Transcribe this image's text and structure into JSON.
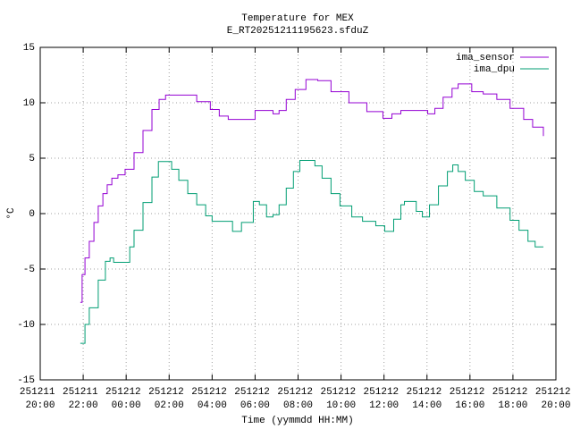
{
  "chart_data": {
    "type": "line",
    "step": true,
    "title": "Temperature for MEX",
    "subtitle": "E_RT20251211195623.sfduZ",
    "xlabel": "Time (yymmdd HH:MM)",
    "ylabel": "°C",
    "xlim": [
      "251211 20:00",
      "251212 20:00"
    ],
    "xticks": [
      "251211 20:00",
      "251211 22:00",
      "251212 00:00",
      "251212 02:00",
      "251212 04:00",
      "251212 06:00",
      "251212 08:00",
      "251212 10:00",
      "251212 12:00",
      "251212 14:00",
      "251212 16:00",
      "251212 18:00",
      "251212 20:00"
    ],
    "ylim": [
      -15,
      15
    ],
    "yticks": [
      -15,
      -10,
      -5,
      0,
      5,
      10,
      15
    ],
    "grid": true,
    "legend": "top right",
    "series": [
      {
        "name": "ima_sensor",
        "color": "#9400d3",
        "x": [
          "251211 21:52",
          "251211 21:57",
          "251211 22:05",
          "251211 22:17",
          "251211 22:30",
          "251211 22:42",
          "251211 22:55",
          "251211 23:07",
          "251211 23:20",
          "251211 23:37",
          "251211 23:57",
          "251212 00:22",
          "251212 00:47",
          "251212 01:12",
          "251212 01:32",
          "251212 01:50",
          "251212 02:47",
          "251212 03:17",
          "251212 03:55",
          "251212 04:20",
          "251212 04:45",
          "251212 05:27",
          "251212 06:00",
          "251212 06:32",
          "251212 06:50",
          "251212 07:07",
          "251212 07:27",
          "251212 07:52",
          "251212 08:22",
          "251212 08:55",
          "251212 09:32",
          "251212 10:22",
          "251212 11:12",
          "251212 11:57",
          "251212 12:22",
          "251212 12:47",
          "251212 13:42",
          "251212 14:02",
          "251212 14:22",
          "251212 14:45",
          "251212 15:10",
          "251212 15:27",
          "251212 15:47",
          "251212 16:05",
          "251212 16:37",
          "251212 17:15",
          "251212 17:52",
          "251212 18:30",
          "251212 18:55",
          "251212 19:25"
        ],
        "values": [
          -8.0,
          -5.5,
          -4.0,
          -2.5,
          -0.8,
          0.7,
          1.8,
          2.6,
          3.2,
          3.5,
          4.0,
          5.5,
          7.5,
          9.4,
          10.3,
          10.7,
          10.7,
          10.1,
          9.4,
          8.8,
          8.5,
          8.5,
          9.3,
          9.3,
          9.0,
          9.3,
          10.3,
          11.2,
          12.1,
          12.0,
          11.0,
          10.0,
          9.2,
          8.6,
          9.0,
          9.3,
          9.3,
          9.0,
          9.5,
          10.5,
          11.3,
          11.7,
          11.7,
          11.0,
          10.8,
          10.3,
          9.5,
          8.5,
          7.8,
          7.0
        ]
      },
      {
        "name": "ima_dpu",
        "color": "#009e73",
        "x": [
          "251211 21:52",
          "251211 22:05",
          "251211 22:17",
          "251211 22:42",
          "251211 23:02",
          "251211 23:15",
          "251211 23:25",
          "251211 23:57",
          "251212 00:10",
          "251212 00:22",
          "251212 00:47",
          "251212 01:12",
          "251212 01:30",
          "251212 01:55",
          "251212 02:07",
          "251212 02:27",
          "251212 02:52",
          "251212 03:17",
          "251212 03:42",
          "251212 04:00",
          "251212 04:32",
          "251212 04:57",
          "251212 05:22",
          "251212 05:55",
          "251212 06:12",
          "251212 06:32",
          "251212 06:50",
          "251212 07:07",
          "251212 07:27",
          "251212 07:47",
          "251212 08:05",
          "251212 08:30",
          "251212 08:47",
          "251212 09:07",
          "251212 09:32",
          "251212 09:57",
          "251212 10:30",
          "251212 11:00",
          "251212 11:37",
          "251212 12:02",
          "251212 12:27",
          "251212 12:47",
          "251212 12:57",
          "251212 13:12",
          "251212 13:30",
          "251212 13:47",
          "251212 14:07",
          "251212 14:32",
          "251212 14:57",
          "251212 15:12",
          "251212 15:27",
          "251212 15:47",
          "251212 16:12",
          "251212 16:37",
          "251212 17:15",
          "251212 17:52",
          "251212 18:17",
          "251212 18:42",
          "251212 19:02",
          "251212 19:25"
        ],
        "values": [
          -11.7,
          -10.0,
          -8.5,
          -6.0,
          -4.3,
          -4.0,
          -4.4,
          -4.4,
          -3.0,
          -1.5,
          1.0,
          3.3,
          4.7,
          4.7,
          4.0,
          3.0,
          1.8,
          0.8,
          -0.2,
          -0.7,
          -0.7,
          -1.6,
          -0.8,
          1.1,
          0.8,
          -0.3,
          -0.1,
          0.8,
          2.3,
          3.8,
          4.8,
          4.8,
          4.3,
          3.2,
          1.8,
          0.7,
          -0.3,
          -0.7,
          -1.1,
          -1.6,
          -0.5,
          0.8,
          1.1,
          1.1,
          0.2,
          -0.3,
          0.8,
          2.5,
          3.8,
          4.4,
          3.8,
          3.0,
          2.0,
          1.6,
          0.5,
          -0.6,
          -1.5,
          -2.5,
          -3.0,
          -3.0
        ]
      }
    ]
  }
}
